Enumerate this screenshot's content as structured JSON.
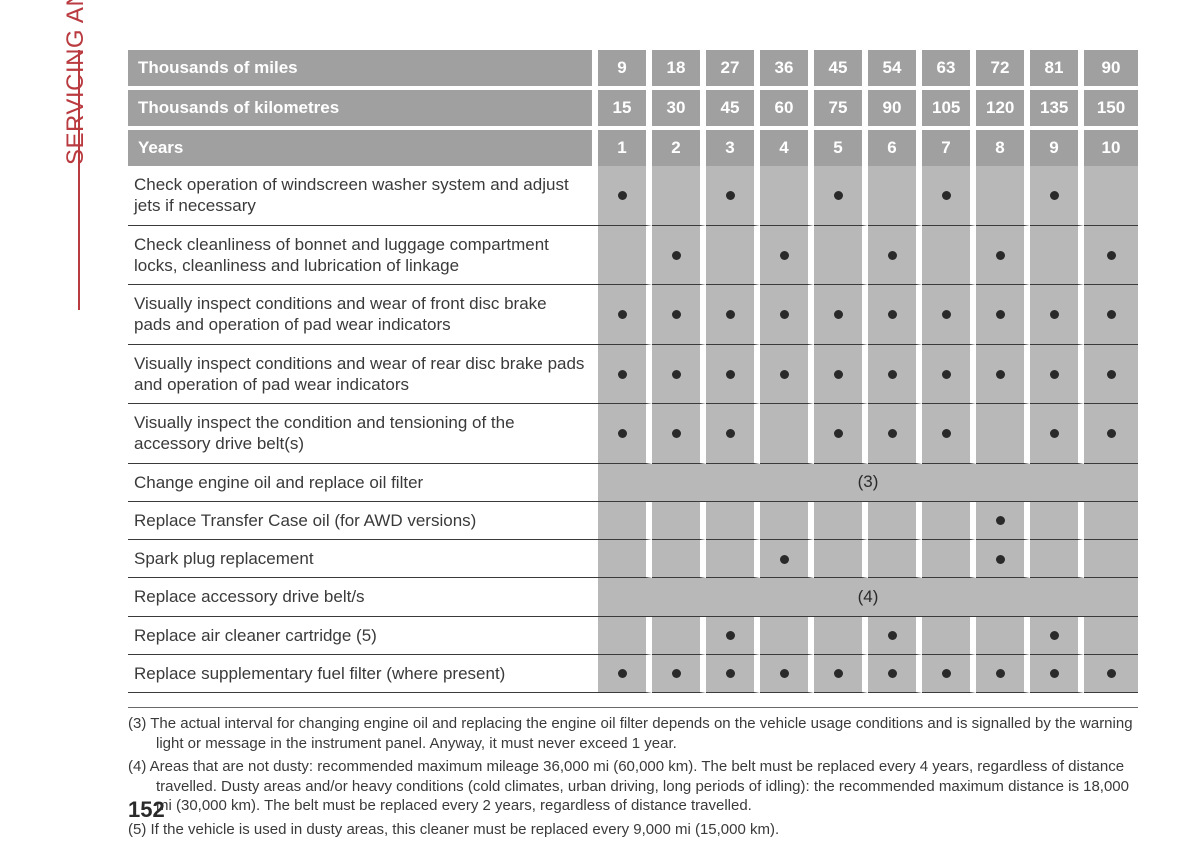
{
  "section_title": "SERVICING AND CARE",
  "page_number": "152",
  "colors": {
    "accent": "#b93a3f",
    "header_bg": "#a0a0a0",
    "cell_bg": "#b8b8b8",
    "text": "#3a3a3a",
    "white": "#ffffff"
  },
  "header_rows": [
    {
      "label": "Thousands of miles",
      "values": [
        "9",
        "18",
        "27",
        "36",
        "45",
        "54",
        "63",
        "72",
        "81",
        "90"
      ]
    },
    {
      "label": "Thousands of kilometres",
      "values": [
        "15",
        "30",
        "45",
        "60",
        "75",
        "90",
        "105",
        "120",
        "135",
        "150"
      ]
    },
    {
      "label": "Years",
      "values": [
        "1",
        "2",
        "3",
        "4",
        "5",
        "6",
        "7",
        "8",
        "9",
        "10"
      ]
    }
  ],
  "rows": [
    {
      "label": "Check operation of windscreen washer system and adjust jets if necessary",
      "marks": [
        true,
        false,
        true,
        false,
        true,
        false,
        true,
        false,
        true,
        false
      ]
    },
    {
      "label": "Check cleanliness of bonnet and luggage compartment locks, cleanliness and lubrication of linkage",
      "marks": [
        false,
        true,
        false,
        true,
        false,
        true,
        false,
        true,
        false,
        true
      ]
    },
    {
      "label": "Visually inspect conditions and wear of front disc brake pads and operation of pad wear indicators",
      "marks": [
        true,
        true,
        true,
        true,
        true,
        true,
        true,
        true,
        true,
        true
      ]
    },
    {
      "label": "Visually inspect conditions and wear of rear disc brake pads and operation of pad wear indicators",
      "marks": [
        true,
        true,
        true,
        true,
        true,
        true,
        true,
        true,
        true,
        true
      ]
    },
    {
      "label": "Visually inspect the condition and tensioning of the accessory drive belt(s)",
      "marks": [
        true,
        true,
        true,
        false,
        true,
        true,
        true,
        false,
        true,
        true
      ]
    },
    {
      "label": "Change engine oil and replace oil filter",
      "span_text": "(3)"
    },
    {
      "label": "Replace Transfer Case oil (for AWD versions)",
      "marks": [
        false,
        false,
        false,
        false,
        false,
        false,
        false,
        true,
        false,
        false
      ]
    },
    {
      "label": "Spark plug replacement",
      "marks": [
        false,
        false,
        false,
        true,
        false,
        false,
        false,
        true,
        false,
        false
      ]
    },
    {
      "label": "Replace accessory drive belt/s",
      "span_text": "(4)"
    },
    {
      "label": "Replace air cleaner cartridge (5)",
      "marks": [
        false,
        false,
        true,
        false,
        false,
        true,
        false,
        false,
        true,
        false
      ]
    },
    {
      "label": "Replace supplementary fuel filter (where present)",
      "marks": [
        true,
        true,
        true,
        true,
        true,
        true,
        true,
        true,
        true,
        true
      ]
    }
  ],
  "footnotes": [
    "(3) The actual interval for changing engine oil and replacing the engine oil filter depends on the vehicle usage conditions and is signalled by the warning light or message in the instrument panel. Anyway, it must never exceed 1 year.",
    "(4) Areas that are not dusty: recommended maximum mileage 36,000 mi (60,000 km). The belt must be replaced every 4 years, regardless of distance travelled. Dusty areas and/or heavy conditions (cold climates, urban driving, long periods of idling): the recommended maximum distance is 18,000 mi (30,000 km). The belt must be replaced every 2 years, regardless of distance travelled.",
    "(5) If the vehicle is used in dusty areas, this cleaner must be replaced every 9,000 mi (15,000 km)."
  ]
}
